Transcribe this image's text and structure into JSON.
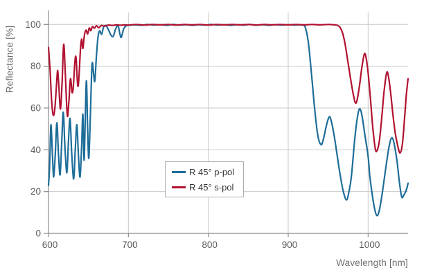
{
  "chart_data": {
    "type": "line",
    "title": "",
    "xlabel": "Wavelength [nm]",
    "ylabel": "Reflectance [%]",
    "xlim": [
      600,
      1050
    ],
    "ylim": [
      0,
      107
    ],
    "x_ticks": [
      600,
      700,
      800,
      900,
      1000
    ],
    "y_ticks": [
      0,
      20,
      40,
      60,
      80,
      100
    ],
    "grid": true,
    "legend_position": "lower-center",
    "series": [
      {
        "name": "R 45° p-pol",
        "color": "#1d6d99",
        "points": [
          [
            600,
            23
          ],
          [
            601.5,
            33
          ],
          [
            603,
            52
          ],
          [
            605,
            37
          ],
          [
            606.5,
            27
          ],
          [
            608.5,
            38
          ],
          [
            610.5,
            53
          ],
          [
            612.5,
            38
          ],
          [
            614.5,
            28
          ],
          [
            616.5,
            43
          ],
          [
            618.5,
            58
          ],
          [
            620.5,
            42
          ],
          [
            623,
            29
          ],
          [
            625,
            44
          ],
          [
            627,
            55
          ],
          [
            629,
            39
          ],
          [
            631.5,
            26
          ],
          [
            633.5,
            40
          ],
          [
            635.5,
            52
          ],
          [
            637.5,
            37
          ],
          [
            639.5,
            27
          ],
          [
            641.5,
            42
          ],
          [
            643,
            57
          ],
          [
            644.5,
            35
          ],
          [
            646,
            55
          ],
          [
            647.5,
            73
          ],
          [
            649,
            50
          ],
          [
            650.5,
            36
          ],
          [
            652.5,
            58
          ],
          [
            654.5,
            81
          ],
          [
            656.5,
            76
          ],
          [
            658,
            73
          ],
          [
            660,
            85
          ],
          [
            662,
            94
          ],
          [
            664,
            97
          ],
          [
            666.5,
            95.3
          ],
          [
            669,
            98.8
          ],
          [
            672,
            99.4
          ],
          [
            675,
            97.5
          ],
          [
            678,
            95
          ],
          [
            681,
            94.3
          ],
          [
            684,
            97.8
          ],
          [
            687,
            99.4
          ],
          [
            689,
            96.2
          ],
          [
            691,
            93.8
          ],
          [
            694,
            97.8
          ],
          [
            697,
            99.3
          ],
          [
            700,
            99.6
          ],
          [
            708,
            99.8
          ],
          [
            716,
            99.6
          ],
          [
            724,
            100
          ],
          [
            732,
            99.7
          ],
          [
            740,
            99.9
          ],
          [
            748,
            99.6
          ],
          [
            756,
            100
          ],
          [
            764,
            99.7
          ],
          [
            772,
            99.9
          ],
          [
            780,
            99.6
          ],
          [
            788,
            99.9
          ],
          [
            796,
            99.7
          ],
          [
            804,
            100
          ],
          [
            812,
            99.7
          ],
          [
            820,
            99.9
          ],
          [
            828,
            99.6
          ],
          [
            836,
            99.9
          ],
          [
            844,
            99.7
          ],
          [
            852,
            100
          ],
          [
            860,
            99.7
          ],
          [
            868,
            99.9
          ],
          [
            876,
            99.6
          ],
          [
            884,
            99.9
          ],
          [
            892,
            99.7
          ],
          [
            900,
            99.9
          ],
          [
            908,
            99.7
          ],
          [
            914,
            99.9
          ],
          [
            918,
            99.6
          ],
          [
            921,
            99
          ],
          [
            925,
            92
          ],
          [
            929,
            77
          ],
          [
            933,
            60
          ],
          [
            937,
            47
          ],
          [
            941,
            42.5
          ],
          [
            944,
            45
          ],
          [
            948,
            52
          ],
          [
            951,
            55.5
          ],
          [
            953,
            55
          ],
          [
            957,
            48
          ],
          [
            961,
            38
          ],
          [
            965,
            28
          ],
          [
            969,
            20
          ],
          [
            973,
            16
          ],
          [
            976,
            20
          ],
          [
            979,
            27
          ],
          [
            983,
            44
          ],
          [
            986,
            54
          ],
          [
            989,
            59.5
          ],
          [
            992,
            57
          ],
          [
            996,
            47
          ],
          [
            1000,
            37
          ],
          [
            1002,
            28
          ],
          [
            1005,
            19
          ],
          [
            1008,
            12
          ],
          [
            1011,
            8.5
          ],
          [
            1014,
            11
          ],
          [
            1018,
            20
          ],
          [
            1022,
            31
          ],
          [
            1026,
            41
          ],
          [
            1029,
            45.5
          ],
          [
            1032,
            44
          ],
          [
            1036,
            35
          ],
          [
            1039,
            25
          ],
          [
            1042,
            17.5
          ],
          [
            1045,
            18.5
          ],
          [
            1048,
            21
          ],
          [
            1050,
            24
          ]
        ]
      },
      {
        "name": "R 45° s-pol",
        "color": "#b11230",
        "points": [
          [
            600,
            89
          ],
          [
            602,
            78
          ],
          [
            604,
            63
          ],
          [
            606,
            56.5
          ],
          [
            608,
            60
          ],
          [
            610,
            71
          ],
          [
            611.5,
            78
          ],
          [
            613,
            70
          ],
          [
            615,
            59.5
          ],
          [
            617,
            72
          ],
          [
            619,
            90.5
          ],
          [
            621,
            77
          ],
          [
            623.5,
            56.5
          ],
          [
            625.5,
            63
          ],
          [
            627.5,
            74
          ],
          [
            629.5,
            67.5
          ],
          [
            631,
            70
          ],
          [
            633,
            82
          ],
          [
            634.5,
            84
          ],
          [
            636.5,
            71
          ],
          [
            638,
            74
          ],
          [
            640,
            88
          ],
          [
            641.5,
            93
          ],
          [
            643,
            88.5
          ],
          [
            645,
            95
          ],
          [
            647,
            97.3
          ],
          [
            649,
            95.5
          ],
          [
            651,
            98.3
          ],
          [
            653,
            97
          ],
          [
            655,
            99
          ],
          [
            657.5,
            98.2
          ],
          [
            660,
            99.4
          ],
          [
            663,
            98.4
          ],
          [
            666,
            99.5
          ],
          [
            670,
            99.2
          ],
          [
            675,
            99.7
          ],
          [
            680,
            99.5
          ],
          [
            685,
            99.8
          ],
          [
            690,
            99.6
          ],
          [
            695,
            99.8
          ],
          [
            700,
            99.7
          ],
          [
            710,
            100
          ],
          [
            720,
            99.7
          ],
          [
            730,
            100
          ],
          [
            740,
            99.8
          ],
          [
            750,
            100
          ],
          [
            760,
            99.7
          ],
          [
            770,
            100
          ],
          [
            780,
            99.8
          ],
          [
            790,
            100
          ],
          [
            800,
            99.7
          ],
          [
            810,
            100
          ],
          [
            820,
            99.8
          ],
          [
            830,
            100
          ],
          [
            840,
            99.8
          ],
          [
            850,
            100
          ],
          [
            860,
            99.7
          ],
          [
            870,
            100
          ],
          [
            880,
            99.8
          ],
          [
            890,
            100
          ],
          [
            900,
            99.8
          ],
          [
            910,
            100
          ],
          [
            920,
            99.8
          ],
          [
            930,
            100
          ],
          [
            940,
            99.8
          ],
          [
            950,
            100
          ],
          [
            958,
            99.8
          ],
          [
            962,
            99.5
          ],
          [
            965,
            98.5
          ],
          [
            968,
            96
          ],
          [
            971,
            91
          ],
          [
            974,
            84
          ],
          [
            977,
            76.5
          ],
          [
            980,
            69.5
          ],
          [
            982,
            65.5
          ],
          [
            984,
            62.5
          ],
          [
            986,
            63.5
          ],
          [
            989,
            70
          ],
          [
            992,
            79
          ],
          [
            995,
            85.5
          ],
          [
            997,
            85
          ],
          [
            1000,
            77
          ],
          [
            1003,
            64
          ],
          [
            1006,
            50
          ],
          [
            1009,
            40.5
          ],
          [
            1011,
            39.5
          ],
          [
            1014,
            44
          ],
          [
            1017,
            55
          ],
          [
            1020,
            68
          ],
          [
            1023,
            76.5
          ],
          [
            1025,
            76
          ],
          [
            1028,
            68
          ],
          [
            1031,
            57
          ],
          [
            1034,
            48
          ],
          [
            1037,
            42
          ],
          [
            1040,
            38.5
          ],
          [
            1043,
            43
          ],
          [
            1046,
            57
          ],
          [
            1048,
            67
          ],
          [
            1050,
            74
          ]
        ]
      }
    ]
  },
  "colors": {
    "background": "#ffffff",
    "gridline": "#c9c9c9",
    "axis_spine": "#8a8a8a",
    "tick_label": "#595959",
    "axis_title": "#6e6e6e",
    "legend_border": "#adadad",
    "legend_text": "#333333",
    "series_p_pol": "#1d6d99",
    "series_s_pol": "#b11230"
  }
}
